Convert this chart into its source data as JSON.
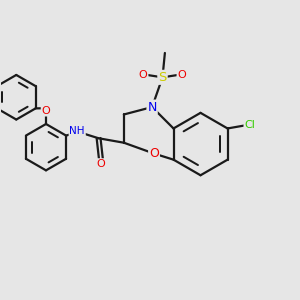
{
  "bg_color": "#e6e6e6",
  "bond_color": "#1a1a1a",
  "bond_lw": 1.6,
  "atom_colors": {
    "N": "#0000ee",
    "O": "#ee0000",
    "S": "#cccc00",
    "Cl": "#33cc00",
    "H": "#339999",
    "C": "#1a1a1a"
  },
  "font_size": 7.5
}
